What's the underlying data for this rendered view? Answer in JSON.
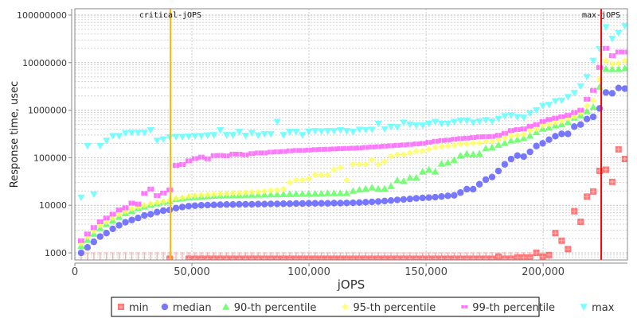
{
  "chart_data": {
    "type": "scatter",
    "xlabel": "jOPS",
    "ylabel": "Response time, usec",
    "yscale": "log",
    "xlim": [
      0,
      236000
    ],
    "ylim": [
      708,
      136000000
    ],
    "xticks": [
      0,
      50000,
      100000,
      150000,
      200000
    ],
    "xtick_labels": [
      "0",
      "50,000",
      "100,000",
      "150,000",
      "200,000"
    ],
    "yticks": [
      1000,
      10000,
      100000,
      1000000,
      10000000,
      100000000
    ],
    "ytick_labels": [
      "1000",
      "10000",
      "100000",
      "1000000",
      "10000000",
      "100000000"
    ],
    "grid": true,
    "legend_position": "bottom",
    "markers": [
      {
        "label": "critical-jOPS",
        "x": 40800,
        "color": "#ffbb00"
      },
      {
        "label": "max-jOPS",
        "x": 224800,
        "color": "#ff0000"
      }
    ],
    "x": [
      2700,
      5400,
      8100,
      10800,
      13500,
      16200,
      18900,
      21600,
      24300,
      27000,
      29700,
      32400,
      35100,
      37800,
      40500,
      43200,
      45900,
      48600,
      51300,
      54000,
      56700,
      59400,
      62100,
      64800,
      67500,
      70200,
      72900,
      75600,
      78300,
      81000,
      83700,
      86400,
      89100,
      91800,
      94500,
      97200,
      99900,
      102600,
      105300,
      108000,
      110700,
      113400,
      116100,
      118800,
      121500,
      124200,
      126900,
      129600,
      132300,
      135000,
      137700,
      140400,
      143100,
      145800,
      148500,
      151200,
      153900,
      156600,
      159300,
      162000,
      164700,
      167400,
      170100,
      172800,
      175500,
      178200,
      180900,
      183600,
      186300,
      189000,
      191700,
      194400,
      197100,
      199800,
      202500,
      205200,
      207900,
      210600,
      213300,
      216000,
      218700,
      221400,
      224100,
      226800,
      229500,
      232200,
      234900
    ],
    "series": [
      {
        "name": "min",
        "color": "#ff5555",
        "shape": "square",
        "values": [
          null,
          null,
          null,
          null,
          null,
          null,
          null,
          null,
          null,
          null,
          null,
          null,
          null,
          null,
          750,
          null,
          null,
          750,
          750,
          750,
          750,
          750,
          750,
          750,
          750,
          750,
          750,
          750,
          750,
          750,
          750,
          750,
          750,
          750,
          750,
          750,
          750,
          750,
          750,
          750,
          750,
          750,
          750,
          750,
          750,
          750,
          750,
          750,
          750,
          750,
          750,
          750,
          750,
          750,
          750,
          750,
          750,
          750,
          750,
          750,
          750,
          750,
          750,
          750,
          750,
          750,
          830,
          750,
          750,
          800,
          800,
          800,
          1000,
          830,
          900,
          2600,
          1800,
          1200,
          7500,
          4500,
          15200,
          19500,
          53000,
          56000,
          31000,
          150000,
          94000
        ]
      },
      {
        "name": "median",
        "color": "#5555ff",
        "shape": "circle",
        "values": [
          1000,
          1300,
          1700,
          2200,
          2600,
          3200,
          3800,
          4400,
          4900,
          5400,
          6100,
          6500,
          7200,
          7700,
          8000,
          8700,
          9200,
          9600,
          9800,
          10000,
          10100,
          10200,
          10300,
          10400,
          10400,
          10500,
          10500,
          10500,
          10600,
          10600,
          10700,
          10700,
          10800,
          10800,
          10900,
          10900,
          11000,
          11000,
          11000,
          11000,
          11100,
          11100,
          11200,
          11300,
          11400,
          11600,
          11800,
          12000,
          12300,
          12600,
          13000,
          13300,
          13600,
          14000,
          14300,
          14500,
          14800,
          15300,
          15800,
          16200,
          18500,
          21800,
          21800,
          27700,
          34600,
          39300,
          52700,
          72600,
          94000,
          111000,
          106000,
          133000,
          176000,
          201000,
          240000,
          284000,
          318000,
          318000,
          451000,
          498000,
          652000,
          724000,
          1090000,
          2360000,
          2270000,
          2930000,
          2840000
        ]
      },
      {
        "name": "90-th percentile",
        "color": "#55ff55",
        "shape": "triangle-up",
        "values": [
          1400,
          1870,
          2500,
          3300,
          4000,
          4800,
          5700,
          6800,
          7600,
          8700,
          9500,
          10300,
          11000,
          11800,
          12200,
          13500,
          14000,
          14500,
          15000,
          15300,
          15500,
          15800,
          16000,
          16200,
          16300,
          16400,
          16500,
          16600,
          16700,
          16800,
          16900,
          17000,
          17100,
          17200,
          17300,
          17400,
          17500,
          17600,
          17700,
          18000,
          18000,
          18000,
          18000,
          20000,
          21300,
          22400,
          23700,
          22400,
          22400,
          25200,
          33700,
          32300,
          38200,
          38200,
          50800,
          56400,
          50800,
          74800,
          78700,
          90000,
          111000,
          122000,
          118000,
          122000,
          157000,
          166000,
          186000,
          203000,
          230000,
          242000,
          259000,
          290000,
          345000,
          405000,
          430000,
          480000,
          500000,
          560000,
          700000,
          780000,
          955000,
          1170000,
          3100000,
          7400000,
          7300000,
          7300000,
          7600000
        ]
      },
      {
        "name": "95-th percentile",
        "color": "#ffff55",
        "shape": "diamond",
        "values": [
          1600,
          2200,
          2900,
          3800,
          4500,
          5500,
          6500,
          7500,
          8500,
          9300,
          10000,
          10800,
          11500,
          12000,
          12800,
          14000,
          14500,
          15500,
          16000,
          16500,
          16800,
          17000,
          17500,
          17700,
          18000,
          18200,
          18500,
          18800,
          19300,
          19800,
          20500,
          21000,
          22000,
          30500,
          34000,
          34000,
          36000,
          44000,
          43500,
          43500,
          56000,
          62000,
          33700,
          73000,
          73000,
          73000,
          90000,
          73000,
          83000,
          107000,
          117000,
          117000,
          126000,
          138000,
          138000,
          150000,
          166000,
          172000,
          178000,
          183000,
          196000,
          196000,
          203000,
          203000,
          222000,
          222000,
          240000,
          262000,
          287000,
          297000,
          310000,
          370000,
          405000,
          480000,
          510000,
          555000,
          600000,
          675000,
          730000,
          890000,
          1240000,
          1600000,
          4500000,
          11000000,
          9400000,
          9600000,
          11000000
        ]
      },
      {
        "name": "99-th percentile",
        "color": "#ff55ff",
        "shape": "bar",
        "values": [
          1800,
          2500,
          3400,
          4500,
          5400,
          6500,
          8000,
          8800,
          11100,
          10600,
          17700,
          22000,
          16000,
          18100,
          21000,
          69000,
          72000,
          86000,
          96000,
          103000,
          95000,
          111000,
          112000,
          110000,
          119000,
          119000,
          115000,
          122000,
          126000,
          126000,
          131000,
          133000,
          135000,
          140000,
          142000,
          142000,
          145000,
          148000,
          150000,
          151000,
          153000,
          155000,
          157000,
          159000,
          161000,
          165000,
          168000,
          171000,
          175000,
          178000,
          182000,
          186000,
          190000,
          195000,
          200000,
          210000,
          222000,
          230000,
          235000,
          245000,
          253000,
          258000,
          265000,
          275000,
          278000,
          280000,
          297000,
          327000,
          373000,
          390000,
          405000,
          460000,
          500000,
          580000,
          640000,
          680000,
          730000,
          780000,
          890000,
          1000000,
          1700000,
          2600000,
          7900000,
          20000000,
          14000000,
          16700000,
          16700000
        ]
      },
      {
        "name": "max",
        "color": "#55ffff",
        "shape": "triangle-down",
        "values": [
          14600,
          178000,
          17000,
          178000,
          230000,
          287000,
          287000,
          330000,
          335000,
          335000,
          335000,
          380000,
          230000,
          245000,
          270000,
          275000,
          275000,
          280000,
          287000,
          287000,
          297000,
          300000,
          380000,
          300000,
          300000,
          350000,
          290000,
          335000,
          297000,
          315000,
          315000,
          570000,
          300000,
          350000,
          350000,
          300000,
          357000,
          365000,
          360000,
          365000,
          365000,
          380000,
          365000,
          350000,
          390000,
          385000,
          390000,
          520000,
          400000,
          450000,
          440000,
          550000,
          500000,
          480000,
          480000,
          520000,
          570000,
          520000,
          520000,
          570000,
          600000,
          600000,
          550000,
          580000,
          620000,
          580000,
          660000,
          750000,
          780000,
          720000,
          700000,
          860000,
          1000000,
          1240000,
          1300000,
          1550000,
          1600000,
          1900000,
          2300000,
          3200000,
          5000000,
          11000000,
          19300000,
          56000000,
          32000000,
          42000000,
          59000000
        ]
      }
    ]
  }
}
